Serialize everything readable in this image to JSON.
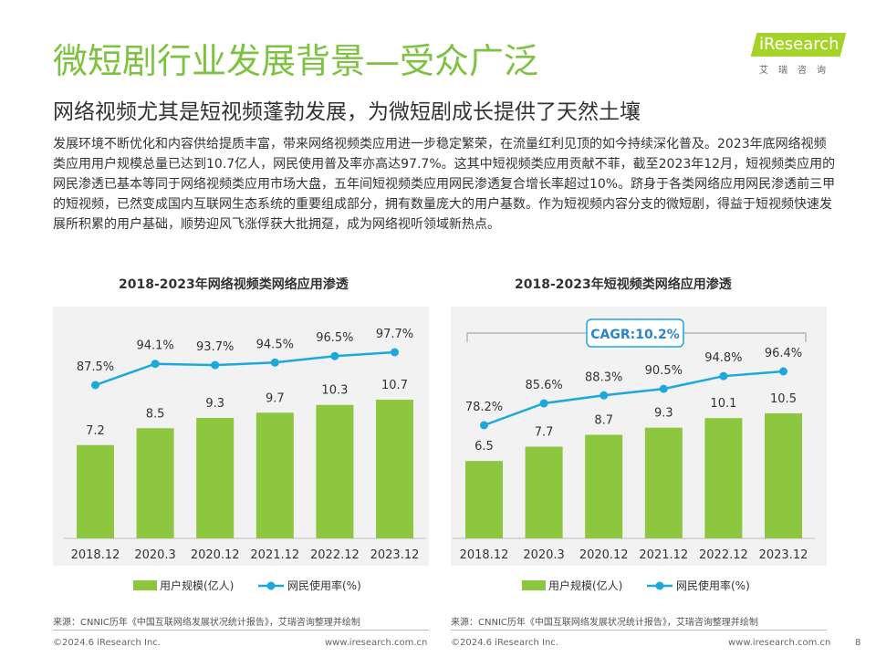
{
  "header": {
    "title": "微短剧行业发展背景—受众广泛",
    "subtitle": "网络视频尤其是短视频蓬勃发展，为微短剧成长提供了天然土壤"
  },
  "logo": {
    "text": "iResearch",
    "cn": "艾瑞咨询"
  },
  "body_text": "发展环境不断优化和内容供给提质丰富，带来网络视频类应用进一步稳定繁荣，在流量红利见顶的如今持续深化普及。2023年底网络视频类应用用户规模总量已达到10.7亿人，网民使用普及率亦高达97.7%。这其中短视频类应用贡献不菲，截至2023年12月，短视频类应用的网民渗透已基本等同于网络视频类应用市场大盘，五年间短视频类应用网民渗透复合增长率超过10%。跻身于各类网络应用网民渗透前三甲的短视频，已然变成国内互联网生态系统的重要组成部分，拥有数量庞大的用户基数。作为短视频内容分支的微短剧，得益于短视频快速发展所积累的用户基础，顺势迎风飞涨俘获大批拥趸，成为网络视听领域新热点。",
  "colors": {
    "green": "#7dc241",
    "bar": "#8dc63f",
    "line": "#1ca8dd",
    "panel": "#f2f2f2"
  },
  "chart_data": [
    {
      "type": "bar+line",
      "title": "2018-2023年网络视频类网络应用渗透",
      "categories": [
        "2018.12",
        "2020.3",
        "2020.12",
        "2021.12",
        "2022.12",
        "2023.12"
      ],
      "series": [
        {
          "name": "用户规模(亿人)",
          "type": "bar",
          "values": [
            7.2,
            8.5,
            9.3,
            9.7,
            10.3,
            10.7
          ],
          "labels": [
            "7.2",
            "8.5",
            "9.3",
            "9.7",
            "10.3",
            "10.7"
          ]
        },
        {
          "name": "网民使用率(%)",
          "type": "line",
          "values": [
            87.5,
            94.1,
            93.7,
            94.5,
            96.5,
            97.7
          ],
          "labels": [
            "87.5%",
            "94.1%",
            "93.7%",
            "94.5%",
            "96.5%",
            "97.7%"
          ]
        }
      ],
      "bar_range": [
        0,
        16
      ],
      "line_range": [
        70,
        110
      ]
    },
    {
      "type": "bar+line",
      "title": "2018-2023年短视频类网络应用渗透",
      "categories": [
        "2018.12",
        "2020.3",
        "2020.12",
        "2021.12",
        "2022.12",
        "2023.12"
      ],
      "series": [
        {
          "name": "用户规模(亿人)",
          "type": "bar",
          "values": [
            6.5,
            7.7,
            8.7,
            9.3,
            10.1,
            10.5
          ],
          "labels": [
            "6.5",
            "7.7",
            "8.7",
            "9.3",
            "10.1",
            "10.5"
          ]
        },
        {
          "name": "网民使用率(%)",
          "type": "line",
          "values": [
            78.2,
            85.6,
            88.3,
            90.5,
            94.8,
            96.4
          ],
          "labels": [
            "78.2%",
            "85.6%",
            "88.3%",
            "90.5%",
            "94.8%",
            "96.4%"
          ]
        }
      ],
      "annotation": "CAGR:10.2%",
      "bar_range": [
        0,
        16
      ],
      "line_range": [
        60,
        110
      ]
    }
  ],
  "source_text": "来源：CNNIC历年《中国互联网络发展状况统计报告》，艾瑞咨询整理并绘制",
  "footer": {
    "copyright": "©2024.6 iResearch Inc.",
    "website": "www.iresearch.com.cn",
    "page": "8"
  }
}
